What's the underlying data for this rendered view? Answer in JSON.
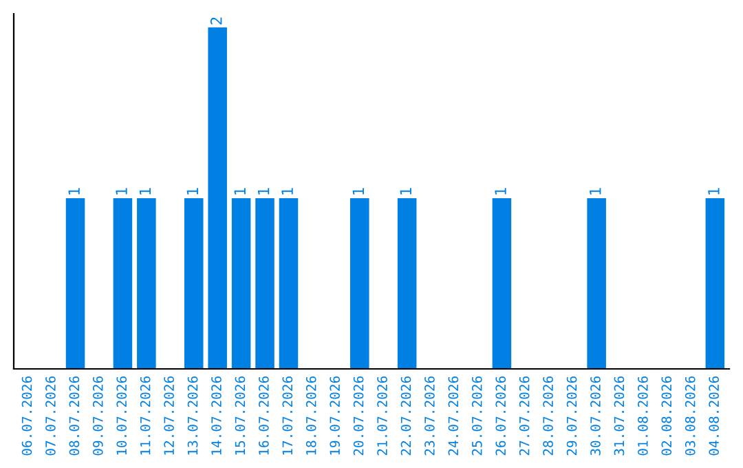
{
  "chart_data": {
    "type": "bar",
    "categories": [
      "06.07.2026",
      "07.07.2026",
      "08.07.2026",
      "09.07.2026",
      "10.07.2026",
      "11.07.2026",
      "12.07.2026",
      "13.07.2026",
      "14.07.2026",
      "15.07.2026",
      "16.07.2026",
      "17.07.2026",
      "18.07.2026",
      "19.07.2026",
      "20.07.2026",
      "21.07.2026",
      "22.07.2026",
      "23.07.2026",
      "24.07.2026",
      "25.07.2026",
      "26.07.2026",
      "27.07.2026",
      "28.07.2026",
      "29.07.2026",
      "30.07.2026",
      "31.07.2026",
      "01.08.2026",
      "02.08.2026",
      "03.08.2026",
      "04.08.2026"
    ],
    "values": [
      0,
      0,
      1,
      0,
      1,
      1,
      0,
      1,
      2,
      1,
      1,
      1,
      0,
      0,
      1,
      0,
      1,
      0,
      0,
      0,
      1,
      0,
      0,
      0,
      1,
      0,
      0,
      0,
      0,
      1
    ],
    "value_labels": [
      null,
      null,
      "1",
      null,
      "1",
      "1",
      null,
      "1",
      "2",
      "1",
      "1",
      "1",
      null,
      null,
      "1",
      null,
      "1",
      null,
      null,
      null,
      "1",
      null,
      null,
      null,
      "1",
      null,
      null,
      null,
      null,
      "1"
    ],
    "color": "#0080e3",
    "tick_labels": "x",
    "grid": false,
    "legend": false
  }
}
